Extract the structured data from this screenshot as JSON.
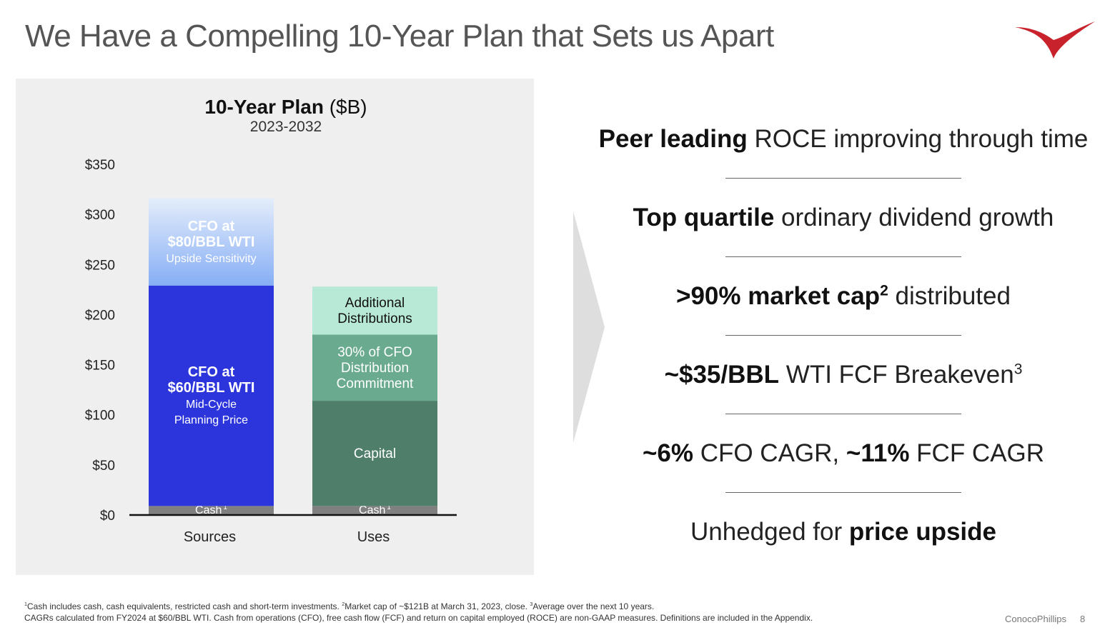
{
  "page": {
    "title": "We Have a Compelling 10-Year Plan that Sets us Apart",
    "company": "ConocoPhillips",
    "page_number": "8"
  },
  "colors": {
    "cfo60": "#2c35dc",
    "cfo80_top": "#cfe0fb",
    "cfo80_bottom": "#86aef5",
    "cash": "#808080",
    "capital": "#4f7f6b",
    "distribution30": "#6aab90",
    "additional": "#b8e8d6",
    "logo": "#c8232c"
  },
  "chart_data": {
    "type": "bar",
    "title": "10-Year Plan",
    "title_unit": "($B)",
    "subtitle": "2023-2032",
    "categories": [
      "Sources",
      "Uses"
    ],
    "ylim": [
      0,
      350
    ],
    "yticks": [
      0,
      50,
      100,
      150,
      200,
      250,
      300,
      350
    ],
    "ytick_labels": [
      "$0",
      "$50",
      "$100",
      "$150",
      "$200",
      "$250",
      "$300",
      "$350"
    ],
    "grid": false,
    "stacks": [
      {
        "category": "Sources",
        "segments": [
          {
            "key": "cash",
            "value": 9,
            "color": "#808080",
            "lines": [
              {
                "text": "Cash",
                "sup": "1",
                "bold": false
              }
            ]
          },
          {
            "key": "cfo60",
            "value": 220,
            "color": "#2c35dc",
            "lines": [
              {
                "text": "CFO at",
                "bold": true
              },
              {
                "text": "$60/BBL WTI",
                "bold": true
              },
              {
                "text": "Mid-Cycle",
                "bold": false
              },
              {
                "text": "Planning Price",
                "bold": false
              }
            ]
          },
          {
            "key": "cfo80",
            "value": 87,
            "color": "#86aef5",
            "gradient": true,
            "lines": [
              {
                "text": "CFO at",
                "bold": true
              },
              {
                "text": "$80/BBL WTI",
                "bold": true
              },
              {
                "text": "Upside Sensitivity",
                "bold": false
              }
            ]
          }
        ]
      },
      {
        "category": "Uses",
        "segments": [
          {
            "key": "cash",
            "value": 9,
            "color": "#808080",
            "lines": [
              {
                "text": "Cash",
                "sup": "1",
                "bold": false
              }
            ]
          },
          {
            "key": "capital",
            "value": 105,
            "color": "#4f7f6b",
            "lines": [
              {
                "text": "Capital",
                "bold": false
              }
            ]
          },
          {
            "key": "dist30",
            "value": 66,
            "color": "#6aab90",
            "lines": [
              {
                "text": "30% of CFO",
                "bold": false
              },
              {
                "text": "Distribution",
                "bold": false
              },
              {
                "text": "Commitment",
                "bold": false
              }
            ]
          },
          {
            "key": "additional",
            "value": 48,
            "color": "#b8e8d6",
            "lines": [
              {
                "text": "Additional",
                "bold": false
              },
              {
                "text": "Distributions",
                "bold": false
              }
            ]
          }
        ]
      }
    ]
  },
  "bullets": [
    {
      "b1": "Peer leading",
      "t1": " ROCE improving through time"
    },
    {
      "b1": "Top quartile",
      "t1": " ordinary dividend growth"
    },
    {
      "b1": ">90% market cap",
      "sup": "2",
      "t1": " distributed"
    },
    {
      "b1": "~$35/BBL",
      "t1": " WTI FCF Breakeven",
      "sup_end": "3"
    },
    {
      "b1": "~6%",
      "t1": " CFO CAGR, ",
      "b2": "~11%",
      "t2": " FCF CAGR"
    },
    {
      "t0": "Unhedged for ",
      "b1": "price upside"
    }
  ],
  "footnotes": {
    "line1": [
      {
        "sup": "1",
        "text": "Cash includes cash, cash equivalents, restricted cash and short-term investments. "
      },
      {
        "sup": "2",
        "text": "Market cap of ~$121B at March 31, 2023, close. "
      },
      {
        "sup": "3",
        "text": "Average over the next 10 years."
      }
    ],
    "line2": "CAGRs calculated from FY2024 at $60/BBL WTI. Cash from operations (CFO), free cash flow (FCF) and return on capital employed (ROCE) are non-GAAP measures. Definitions are included in the Appendix."
  }
}
